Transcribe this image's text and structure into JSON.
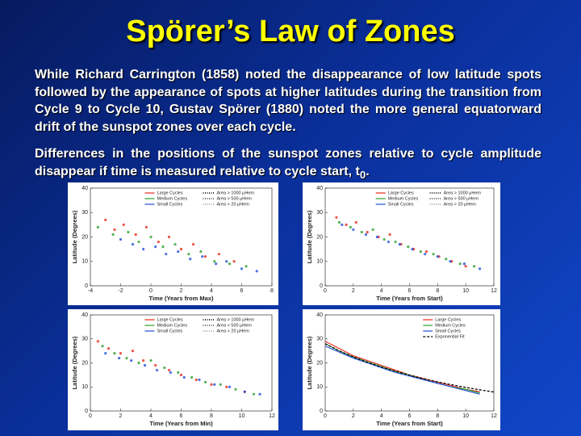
{
  "title": "Spörer’s Law of Zones",
  "paragraphs": [
    "While Richard Carrington (1858) noted the disappearance of low latitude spots followed by the appearance of spots at higher latitudes during the transition from Cycle 9 to Cycle 10, Gustav Spörer (1880) noted the more general equatorward drift of the sunspot  zones over each cycle.",
    [
      "Differences in the positions of the sunspot zones relative to cycle amplitude disappear if time is measured relative to cycle start, t",
      "0",
      "."
    ]
  ],
  "chart_data": [
    {
      "type": "scatter",
      "xlabel": "Time (Years from Max)",
      "ylabel": "Latitude (Degrees)",
      "xlim": [
        -4,
        8
      ],
      "xticks": [
        -4,
        -2,
        0,
        2,
        4,
        6,
        8
      ],
      "ylim": [
        0,
        40
      ],
      "yticks": [
        0,
        10,
        20,
        30,
        40
      ],
      "size_legend": [
        "Area > 1000 μHem",
        "Area > 500 μHem",
        "Area > 20 μHem"
      ],
      "series": [
        {
          "name": "Large Cycles",
          "color": "#e8291c",
          "x": [
            -3,
            -2.4,
            -1.8,
            -1,
            -0.3,
            0.5,
            1.2,
            2,
            2.8,
            3.6,
            4.5,
            5.5
          ],
          "values": [
            27,
            23,
            25,
            21,
            24,
            18,
            20,
            15,
            17,
            12,
            13,
            10
          ]
        },
        {
          "name": "Medium Cycles",
          "color": "#2ca02c",
          "x": [
            -3.5,
            -2.5,
            -1.5,
            -0.8,
            0,
            0.8,
            1.6,
            2.5,
            3.3,
            4.2,
            5.2,
            6.3
          ],
          "values": [
            24,
            21,
            22,
            18,
            20,
            16,
            17,
            13,
            14,
            10,
            9,
            8
          ]
        },
        {
          "name": "Small Cycles",
          "color": "#1f4fd8",
          "x": [
            -2,
            -1.2,
            -0.5,
            0.3,
            1,
            1.8,
            2.6,
            3.4,
            4.3,
            5,
            6,
            7
          ],
          "values": [
            19,
            17,
            15,
            16,
            13,
            14,
            11,
            12,
            9,
            10,
            7,
            6
          ]
        }
      ]
    },
    {
      "type": "scatter",
      "xlabel": "Time (Years from Start)",
      "ylabel": "Latitude (Degrees)",
      "xlim": [
        0,
        12
      ],
      "xticks": [
        0,
        2,
        4,
        6,
        8,
        10,
        12
      ],
      "ylim": [
        0,
        40
      ],
      "yticks": [
        0,
        10,
        20,
        30,
        40
      ],
      "size_legend": [
        "Area > 1000 μHem",
        "Area > 500 μHem",
        "Area > 20 μHem"
      ],
      "series": [
        {
          "name": "Large Cycles",
          "color": "#e8291c",
          "x": [
            0.8,
            1.5,
            2.2,
            3,
            3.8,
            4.6,
            5.4,
            6.3,
            7.2,
            8.1,
            9,
            10
          ],
          "values": [
            28,
            25,
            26,
            22,
            20,
            21,
            17,
            15,
            14,
            12,
            10,
            8
          ]
        },
        {
          "name": "Medium Cycles",
          "color": "#2ca02c",
          "x": [
            1,
            1.8,
            2.6,
            3.4,
            4.2,
            5,
            5.9,
            6.8,
            7.7,
            8.6,
            9.6,
            10.6
          ],
          "values": [
            26,
            24,
            22,
            23,
            19,
            18,
            16,
            14,
            13,
            11,
            9,
            8
          ]
        },
        {
          "name": "Small Cycles",
          "color": "#1f4fd8",
          "x": [
            1.2,
            2,
            2.9,
            3.7,
            4.5,
            5.3,
            6.2,
            7.1,
            8,
            8.9,
            9.9,
            11
          ],
          "values": [
            25,
            23,
            21,
            20,
            18,
            17,
            15,
            13,
            12,
            10,
            9,
            7
          ]
        }
      ]
    },
    {
      "type": "scatter",
      "xlabel": "Time (Years from Min)",
      "ylabel": "Latitude (Degrees)",
      "xlim": [
        0,
        12
      ],
      "xticks": [
        0,
        2,
        4,
        6,
        8,
        10,
        12
      ],
      "ylim": [
        0,
        40
      ],
      "yticks": [
        0,
        10,
        20,
        30,
        40
      ],
      "size_legend": [
        "Area > 1000 μHem",
        "Area > 500 μHem",
        "Area > 20 μHem"
      ],
      "series": [
        {
          "name": "Large Cycles",
          "color": "#e8291c",
          "x": [
            0.5,
            1.2,
            2,
            2.8,
            3.5,
            4.3,
            5.2,
            6,
            7,
            8,
            9,
            10.2
          ],
          "values": [
            29,
            26,
            24,
            25,
            21,
            19,
            17,
            15,
            13,
            11,
            10,
            8
          ]
        },
        {
          "name": "Medium Cycles",
          "color": "#2ca02c",
          "x": [
            0.8,
            1.6,
            2.4,
            3.2,
            4,
            4.9,
            5.8,
            6.7,
            7.6,
            8.6,
            9.6,
            10.8
          ],
          "values": [
            27,
            24,
            22,
            20,
            21,
            18,
            16,
            14,
            12,
            11,
            9,
            7
          ]
        },
        {
          "name": "Small Cycles",
          "color": "#1f4fd8",
          "x": [
            1,
            1.9,
            2.7,
            3.6,
            4.4,
            5.3,
            6.2,
            7.2,
            8.2,
            9.2,
            10.2,
            11.2
          ],
          "values": [
            24,
            22,
            21,
            19,
            17,
            16,
            14,
            13,
            11,
            10,
            8,
            7
          ]
        }
      ]
    },
    {
      "type": "line",
      "xlabel": "Time (Years from Start)",
      "ylabel": "Latitude (Degrees)",
      "xlim": [
        0,
        12
      ],
      "xticks": [
        0,
        2,
        4,
        6,
        8,
        10,
        12
      ],
      "ylim": [
        0,
        40
      ],
      "yticks": [
        0,
        10,
        20,
        30,
        40
      ],
      "series": [
        {
          "name": "Large Cycles",
          "color": "#e8291c",
          "style": "solid",
          "x": [
            0,
            1,
            2,
            3,
            4,
            5,
            6,
            7,
            8,
            9,
            10,
            11
          ],
          "values": [
            29,
            26,
            23,
            21,
            19,
            17,
            15,
            13.5,
            12,
            10.5,
            9,
            8
          ]
        },
        {
          "name": "Medium Cycles",
          "color": "#2ca02c",
          "style": "solid",
          "x": [
            0,
            1,
            2,
            3,
            4,
            5,
            6,
            7,
            8,
            9,
            10,
            11
          ],
          "values": [
            28,
            25,
            22.5,
            20.5,
            18.5,
            16.5,
            15,
            13,
            11.5,
            10,
            9,
            7.5
          ]
        },
        {
          "name": "Small Cycles",
          "color": "#1f4fd8",
          "style": "solid",
          "x": [
            0,
            1,
            2,
            3,
            4,
            5,
            6,
            7,
            8,
            9,
            10,
            11
          ],
          "values": [
            27,
            24.5,
            22,
            20,
            18,
            16,
            14.5,
            13,
            11.5,
            10,
            8.5,
            7
          ]
        },
        {
          "name": "Exponential Fit",
          "color": "#000000",
          "style": "dashed",
          "x": [
            0,
            1,
            2,
            3,
            4,
            5,
            6,
            7,
            8,
            9,
            10,
            11,
            12
          ],
          "values": [
            28,
            25,
            22.5,
            20.3,
            18.3,
            16.5,
            14.9,
            13.4,
            12.1,
            10.9,
            9.8,
            8.8,
            7.9
          ]
        }
      ]
    }
  ]
}
